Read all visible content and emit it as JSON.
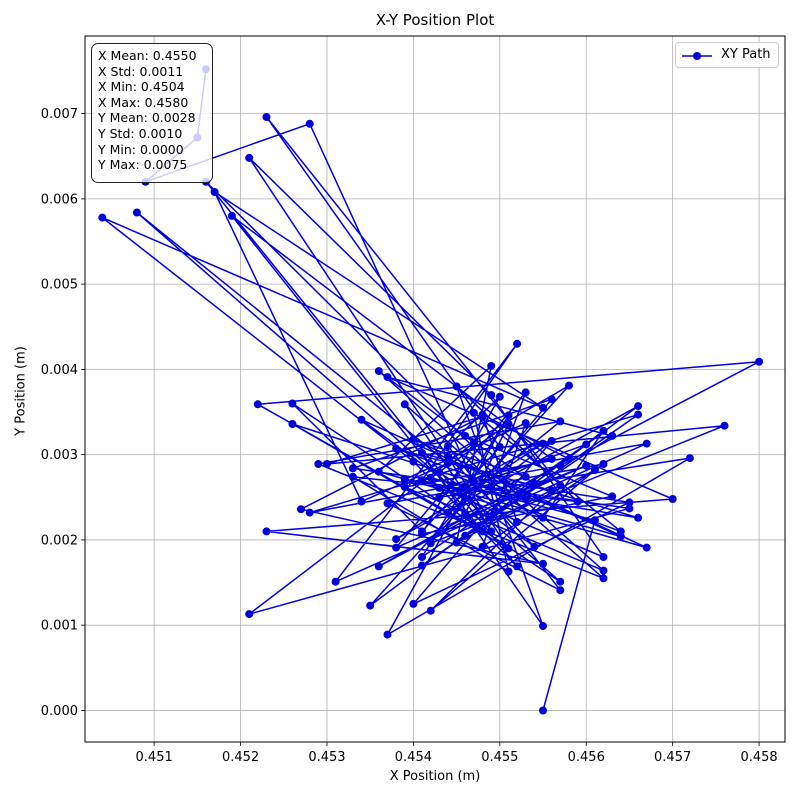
{
  "chart_data": {
    "type": "line",
    "title": "X-Y Position Plot",
    "xlabel": "X Position (m)",
    "ylabel": "Y Position (m)",
    "xlim": [
      0.4502,
      0.4583
    ],
    "ylim": [
      -0.00037,
      0.00791
    ],
    "xticks": [
      0.451,
      0.452,
      0.453,
      0.454,
      0.455,
      0.456,
      0.457,
      0.458
    ],
    "xtick_labels": [
      "0.451",
      "0.452",
      "0.453",
      "0.454",
      "0.455",
      "0.456",
      "0.457",
      "0.458"
    ],
    "yticks": [
      0.0,
      0.001,
      0.002,
      0.003,
      0.004,
      0.005,
      0.006,
      0.007
    ],
    "ytick_labels": [
      "0.000",
      "0.001",
      "0.002",
      "0.003",
      "0.004",
      "0.005",
      "0.006",
      "0.007"
    ],
    "grid": true,
    "legend": {
      "position": "upper right",
      "entries": [
        "XY Path"
      ]
    },
    "stats_box": {
      "position": "upper left",
      "lines": [
        "X Mean: 0.4550",
        "X Std: 0.0011",
        "X Min: 0.4504",
        "X Max: 0.4580",
        "Y Mean: 0.0028",
        "Y Std: 0.0010",
        "Y Min: 0.0000",
        "Y Max: 0.0075"
      ]
    },
    "series": [
      {
        "name": "XY Path",
        "color": "#0000dd",
        "marker": "circle",
        "x": [
          0.4516,
          0.4515,
          0.4509,
          0.4528,
          0.4547,
          0.4555,
          0.4562,
          0.4546,
          0.4557,
          0.4523,
          0.455,
          0.4541,
          0.4526,
          0.4557,
          0.4508,
          0.4544,
          0.4534,
          0.4517,
          0.4555,
          0.4504,
          0.454,
          0.4552,
          0.4516,
          0.4553,
          0.4526,
          0.4551,
          0.4521,
          0.4549,
          0.4562,
          0.4543,
          0.4556,
          0.4519,
          0.4548,
          0.4522,
          0.458,
          0.4557,
          0.4528,
          0.4566,
          0.4541,
          0.4563,
          0.4537,
          0.457,
          0.4523,
          0.4555,
          0.4527,
          0.4548,
          0.453,
          0.4576,
          0.4542,
          0.4556,
          0.4533,
          0.4565,
          0.4521,
          0.4547,
          0.4536,
          0.4562,
          0.4539,
          0.4567,
          0.4531,
          0.4552,
          0.4541,
          0.4564,
          0.4534,
          0.4554,
          0.4544,
          0.4558,
          0.4535,
          0.4566,
          0.4538,
          0.4555,
          0.4543,
          0.4572,
          0.4537,
          0.4551,
          0.4541,
          0.456,
          0.4546,
          0.4549,
          0.4539,
          0.4562,
          0.4529,
          0.4557,
          0.4544,
          0.4553,
          0.454,
          0.4567,
          0.4536,
          0.4549,
          0.4545,
          0.4561,
          0.4542,
          0.4556,
          0.4538,
          0.4564,
          0.4547,
          0.4551,
          0.4533,
          0.4559,
          0.4545,
          0.4555,
          0.4541,
          0.4566,
          0.4539,
          0.4553,
          0.4548,
          0.4562,
          0.4537,
          0.4557,
          0.4544,
          0.455,
          0.4541,
          0.4563,
          0.4546,
          0.4554,
          0.4536,
          0.4558,
          0.4548,
          0.4552,
          0.4543,
          0.4565,
          0.454,
          0.4556,
          0.4549,
          0.4553,
          0.4538,
          0.456,
          0.4546,
          0.4551,
          0.4542,
          0.4561,
          0.4555
        ],
        "y": [
          0.00752,
          0.00672,
          0.0062,
          0.00688,
          0.00268,
          0.00226,
          0.00328,
          0.00205,
          0.00264,
          0.00696,
          0.00309,
          0.0021,
          0.0036,
          0.00151,
          0.00584,
          0.0029,
          0.00245,
          0.00608,
          0.00355,
          0.00578,
          0.00292,
          0.00169,
          0.0062,
          0.00248,
          0.00336,
          0.0019,
          0.00648,
          0.0037,
          0.0018,
          0.00261,
          0.00295,
          0.0058,
          0.0021,
          0.00359,
          0.00409,
          0.00287,
          0.00232,
          0.00347,
          0.0017,
          0.00322,
          0.00391,
          0.00248,
          0.0021,
          0.00172,
          0.00236,
          0.00345,
          0.00289,
          0.00334,
          0.00196,
          0.00365,
          0.00284,
          0.00237,
          0.00113,
          0.00314,
          0.00398,
          0.00164,
          0.00262,
          0.00313,
          0.00151,
          0.0043,
          0.0027,
          0.00204,
          0.00341,
          0.00192,
          0.00298,
          0.00381,
          0.00123,
          0.00357,
          0.00201,
          0.00313,
          0.0025,
          0.00296,
          0.00089,
          0.00346,
          0.0018,
          0.00312,
          0.00261,
          0.0021,
          0.00359,
          0.00155,
          0.00289,
          0.00339,
          0.00232,
          0.00274,
          0.00318,
          0.00191,
          0.0028,
          0.00404,
          0.00197,
          0.00282,
          0.00117,
          0.00258,
          0.00307,
          0.0021,
          0.00349,
          0.00163,
          0.00274,
          0.00245,
          0.0038,
          0.00099,
          0.00302,
          0.00226,
          0.00271,
          0.00337,
          0.00192,
          0.00289,
          0.00243,
          0.00141,
          0.0031,
          0.00368,
          0.00207,
          0.00251,
          0.00322,
          0.00266,
          0.00169,
          0.00295,
          0.00347,
          0.00221,
          0.00279,
          0.00244,
          0.00125,
          0.00316,
          0.00262,
          0.00373,
          0.00191,
          0.00287,
          0.00231,
          0.00336,
          0.00273,
          0.00223,
          0.0
        ]
      }
    ]
  }
}
